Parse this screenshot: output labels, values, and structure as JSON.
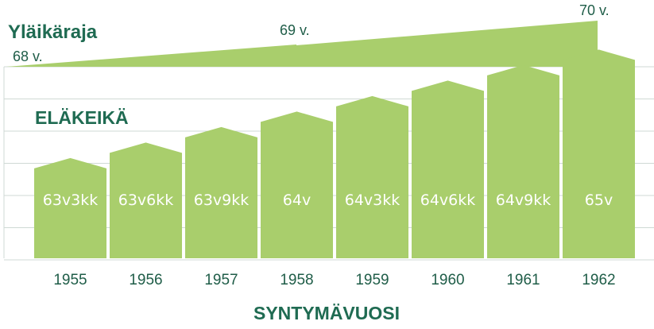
{
  "chart_data": {
    "type": "bar",
    "title": "ELÄKEIKÄ",
    "xlabel": "SYNTYMÄVUOSI",
    "categories": [
      "1955",
      "1956",
      "1957",
      "1958",
      "1959",
      "1960",
      "1961",
      "1962"
    ],
    "values": [
      63.25,
      63.5,
      63.75,
      64.0,
      64.25,
      64.5,
      64.75,
      65.0
    ],
    "value_labels": [
      "63v3kk",
      "63v6kk",
      "63v9kk",
      "64v",
      "64v3kk",
      "64v6kk",
      "64v9kk",
      "65v"
    ],
    "ylim": [
      60,
      66
    ],
    "grid": true,
    "colors": {
      "bar": "#a9ce6c",
      "text": "#1f6b52",
      "grid": "#cfd9d4"
    },
    "upper_limit": {
      "label": "Yläikäraja",
      "steps": [
        {
          "label": "68 v.",
          "value": 68
        },
        {
          "label": "69 v.",
          "value": 69
        },
        {
          "label": "70 v.",
          "value": 70
        }
      ]
    }
  }
}
